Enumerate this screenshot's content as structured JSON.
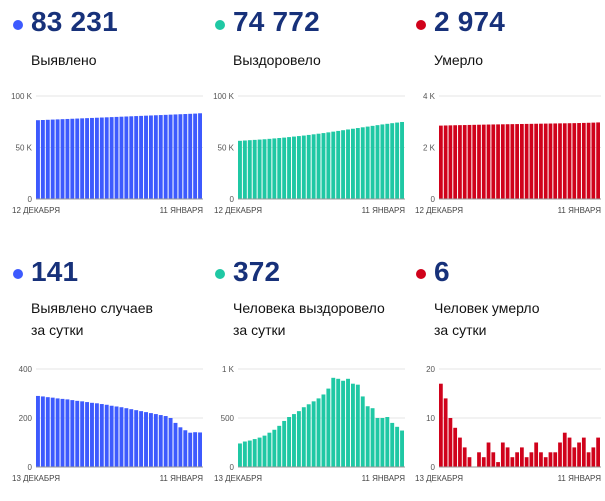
{
  "panels": [
    {
      "value": "83 231",
      "label": [
        "Выявлено"
      ],
      "color": "#3d5afe",
      "chart_data": {
        "type": "bar",
        "ylim": [
          0,
          100000
        ],
        "yticks": [
          "0",
          "50 K",
          "100 K"
        ],
        "xlabels": [
          "12 ДЕКАБРЯ",
          "11 ЯНВАРЯ"
        ],
        "series": [
          {
            "values": [
              76500,
              76700,
              76900,
              77100,
              77300,
              77500,
              77700,
              77900,
              78100,
              78300,
              78500,
              78700,
              78900,
              79100,
              79300,
              79500,
              79700,
              79900,
              80100,
              80300,
              80500,
              80700,
              80900,
              81100,
              81300,
              81500,
              81700,
              81900,
              82100,
              82300,
              82500,
              82700,
              82900,
              83231
            ]
          }
        ]
      }
    },
    {
      "value": "74 772",
      "label": [
        "Выздоровело"
      ],
      "color": "#1fc8a4",
      "chart_data": {
        "type": "bar",
        "ylim": [
          0,
          100000
        ],
        "yticks": [
          "0",
          "50 K",
          "100 K"
        ],
        "xlabels": [
          "12 ДЕКАБРЯ",
          "11 ЯНВАРЯ"
        ],
        "series": [
          {
            "values": [
              56500,
              56800,
              57100,
              57400,
              57700,
              58000,
              58400,
              58800,
              59200,
              59600,
              60100,
              60600,
              61100,
              61600,
              62200,
              62800,
              63400,
              64000,
              64700,
              65400,
              66100,
              66800,
              67500,
              68200,
              68900,
              69600,
              70300,
              71000,
              71700,
              72400,
              73000,
              73600,
              74200,
              74772
            ]
          }
        ]
      }
    },
    {
      "value": "2 974",
      "label": [
        "Умерло"
      ],
      "color": "#d0021b",
      "chart_data": {
        "type": "bar",
        "ylim": [
          0,
          4000
        ],
        "yticks": [
          "0",
          "2 K",
          "4 K"
        ],
        "xlabels": [
          "12 ДЕКАБРЯ",
          "11 ЯНВАРЯ"
        ],
        "series": [
          {
            "values": [
              2850,
              2855,
              2860,
              2865,
              2868,
              2872,
              2876,
              2880,
              2884,
              2888,
              2892,
              2895,
              2898,
              2901,
              2904,
              2907,
              2910,
              2913,
              2916,
              2919,
              2922,
              2925,
              2928,
              2931,
              2934,
              2937,
              2940,
              2943,
              2946,
              2950,
              2955,
              2960,
              2966,
              2974
            ]
          }
        ]
      }
    },
    {
      "value": "141",
      "label": [
        "Выявлено случаев",
        "за сутки"
      ],
      "color": "#3d5afe",
      "chart_data": {
        "type": "bar",
        "ylim": [
          0,
          400
        ],
        "yticks": [
          "0",
          "200",
          "400"
        ],
        "xlabels": [
          "13 ДЕКАБРЯ",
          "11 ЯНВАРЯ"
        ],
        "series": [
          {
            "values": [
              290,
              288,
              285,
              283,
              280,
              278,
              276,
              273,
              270,
              268,
              265,
              262,
              260,
              257,
              254,
              250,
              247,
              244,
              240,
              236,
              232,
              228,
              224,
              220,
              216,
              212,
              208,
              200,
              180,
              162,
              150,
              140,
              142,
              141
            ]
          }
        ]
      }
    },
    {
      "value": "372",
      "label": [
        "Человека выздоровело",
        "за сутки"
      ],
      "color": "#1fc8a4",
      "chart_data": {
        "type": "bar",
        "ylim": [
          0,
          1000
        ],
        "yticks": [
          "0",
          "500",
          "1 K"
        ],
        "xlabels": [
          "13 ДЕКАБРЯ",
          "11 ЯНВАРЯ"
        ],
        "series": [
          {
            "values": [
              240,
              260,
              270,
              285,
              300,
              320,
              350,
              380,
              420,
              470,
              510,
              540,
              570,
              610,
              640,
              670,
              700,
              740,
              800,
              910,
              900,
              880,
              900,
              850,
              840,
              720,
              620,
              600,
              500,
              500,
              510,
              450,
              410,
              372
            ]
          }
        ]
      }
    },
    {
      "value": "6",
      "label": [
        "Человек умерло",
        "за сутки"
      ],
      "color": "#d0021b",
      "chart_data": {
        "type": "bar",
        "ylim": [
          0,
          20
        ],
        "yticks": [
          "0",
          "10",
          "20"
        ],
        "xlabels": [
          "13 ДЕКАБРЯ",
          "11 ЯНВАРЯ"
        ],
        "series": [
          {
            "values": [
              17,
              14,
              10,
              8,
              6,
              4,
              2,
              0,
              3,
              2,
              5,
              3,
              1,
              5,
              4,
              2,
              3,
              4,
              2,
              3,
              5,
              3,
              2,
              3,
              3,
              5,
              7,
              6,
              4,
              5,
              6,
              3,
              4,
              6
            ]
          }
        ]
      }
    }
  ]
}
